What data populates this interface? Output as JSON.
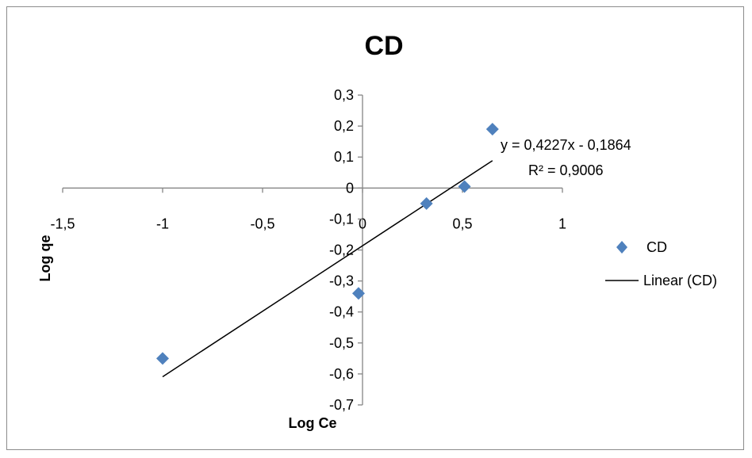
{
  "chart_data": {
    "type": "scatter",
    "title": "CD",
    "xlabel": "Log Ce",
    "ylabel": "Log qe",
    "xlim": [
      -1.5,
      1
    ],
    "ylim": [
      -0.7,
      0.3
    ],
    "xticks": [
      "-1,5",
      "-1",
      "-0,5",
      "0",
      "0,5",
      "1"
    ],
    "yticks": [
      "0,3",
      "0,2",
      "0,1",
      "0",
      "-0,1",
      "-0,2",
      "-0,3",
      "-0,4",
      "-0,5",
      "-0,6",
      "-0,7"
    ],
    "grid": false,
    "legend_position": "right",
    "series": [
      {
        "name": "CD",
        "marker": "diamond",
        "color": "#4F81BD",
        "points": [
          {
            "x": -1.0,
            "y": -0.55
          },
          {
            "x": -0.02,
            "y": -0.34
          },
          {
            "x": 0.32,
            "y": -0.05
          },
          {
            "x": 0.51,
            "y": 0.005
          },
          {
            "x": 0.65,
            "y": 0.19
          }
        ]
      }
    ],
    "trendline": {
      "name": "Linear (CD)",
      "type": "linear",
      "color": "#000000",
      "slope": 0.4227,
      "intercept": -0.1864,
      "x_range": [
        -1.0,
        0.65
      ],
      "equation": "y = 0,4227x - 0,1864",
      "r_squared": "R² = 0,9006"
    }
  }
}
